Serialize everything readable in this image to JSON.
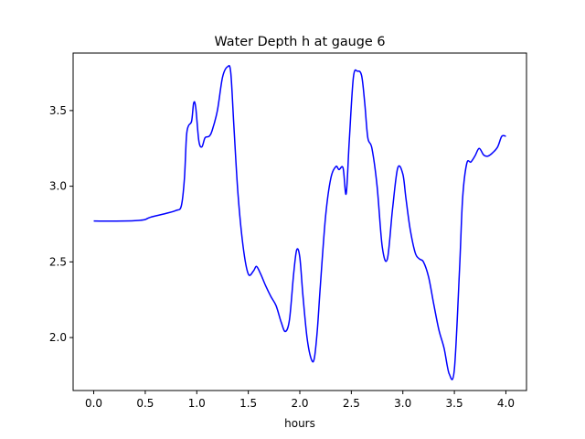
{
  "chart_data": {
    "type": "line",
    "title": "Water Depth h at gauge 6",
    "xlabel": "hours",
    "ylabel": "",
    "xlim": [
      -0.2,
      4.2
    ],
    "ylim": [
      1.65,
      3.88
    ],
    "xticks": [
      0.0,
      0.5,
      1.0,
      1.5,
      2.0,
      2.5,
      3.0,
      3.5,
      4.0
    ],
    "xtick_labels": [
      "0.0",
      "0.5",
      "1.0",
      "1.5",
      "2.0",
      "2.5",
      "3.0",
      "3.5",
      "4.0"
    ],
    "yticks": [
      2.0,
      2.5,
      3.0,
      3.5
    ],
    "ytick_labels": [
      "2.0",
      "2.5",
      "3.0",
      "3.5"
    ],
    "grid": false,
    "legend": "none",
    "series": [
      {
        "color": "#0000ff",
        "x": [
          0.0,
          0.3,
          0.45,
          0.5,
          0.55,
          0.7,
          0.8,
          0.85,
          0.88,
          0.9,
          0.92,
          0.95,
          0.97,
          0.99,
          1.02,
          1.05,
          1.08,
          1.12,
          1.15,
          1.2,
          1.25,
          1.3,
          1.33,
          1.36,
          1.4,
          1.45,
          1.5,
          1.55,
          1.58,
          1.62,
          1.67,
          1.72,
          1.77,
          1.82,
          1.86,
          1.9,
          1.94,
          1.97,
          2.0,
          2.03,
          2.07,
          2.11,
          2.14,
          2.17,
          2.2,
          2.25,
          2.3,
          2.35,
          2.38,
          2.42,
          2.45,
          2.48,
          2.52,
          2.56,
          2.6,
          2.63,
          2.66,
          2.7,
          2.75,
          2.8,
          2.85,
          2.9,
          2.95,
          3.0,
          3.03,
          3.07,
          3.12,
          3.16,
          3.2,
          3.25,
          3.3,
          3.35,
          3.4,
          3.45,
          3.5,
          3.55,
          3.58,
          3.62,
          3.66,
          3.7,
          3.74,
          3.78,
          3.8,
          3.83,
          3.87,
          3.92,
          3.96,
          4.0
        ],
        "y": [
          2.77,
          2.77,
          2.775,
          2.78,
          2.795,
          2.82,
          2.84,
          2.87,
          3.05,
          3.33,
          3.4,
          3.43,
          3.55,
          3.52,
          3.3,
          3.26,
          3.32,
          3.33,
          3.37,
          3.5,
          3.72,
          3.79,
          3.75,
          3.4,
          2.95,
          2.6,
          2.42,
          2.44,
          2.47,
          2.42,
          2.34,
          2.27,
          2.21,
          2.1,
          2.04,
          2.12,
          2.42,
          2.58,
          2.53,
          2.28,
          2.0,
          1.86,
          1.86,
          2.05,
          2.35,
          2.8,
          3.05,
          3.13,
          3.11,
          3.12,
          2.95,
          3.3,
          3.72,
          3.76,
          3.73,
          3.55,
          3.32,
          3.25,
          3.0,
          2.6,
          2.52,
          2.85,
          3.12,
          3.08,
          2.92,
          2.72,
          2.56,
          2.52,
          2.5,
          2.4,
          2.22,
          2.05,
          1.93,
          1.76,
          1.79,
          2.45,
          2.92,
          3.15,
          3.16,
          3.2,
          3.25,
          3.21,
          3.2,
          3.2,
          3.22,
          3.26,
          3.33,
          3.33
        ]
      }
    ]
  }
}
